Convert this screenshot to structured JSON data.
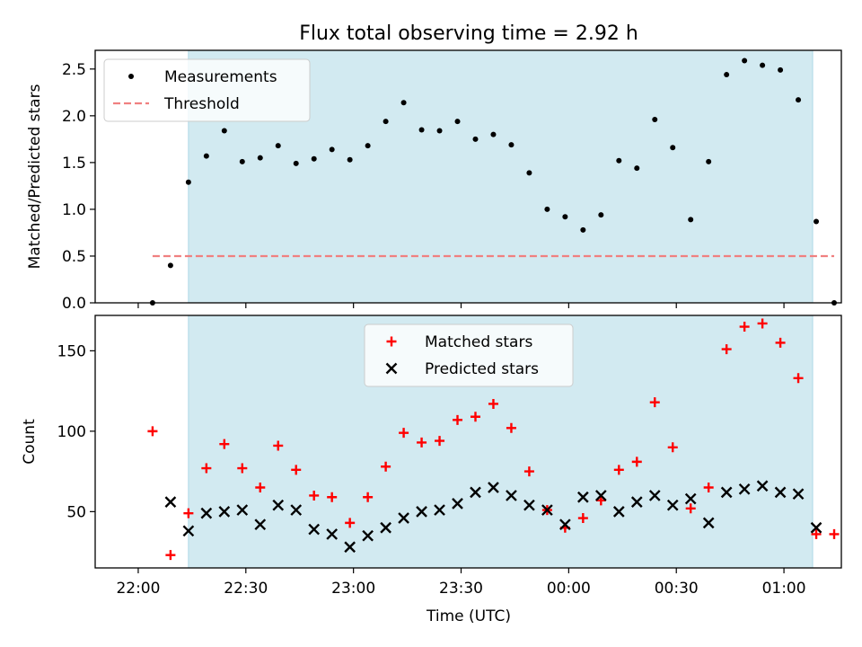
{
  "title": "Flux total observing time = 2.92 h",
  "x_axis": {
    "label": "Time (UTC)",
    "ticks": [
      "22:00",
      "22:30",
      "23:00",
      "23:30",
      "00:00",
      "00:30",
      "01:00"
    ]
  },
  "shaded_interval": {
    "start": "22:14",
    "end": "01:08",
    "color": "#add8e6"
  },
  "chart_data": [
    {
      "type": "scatter",
      "ylabel": "Matched/Predicted stars",
      "ylim": [
        0,
        2.7
      ],
      "yticks": [
        "0.0",
        "0.5",
        "1.0",
        "1.5",
        "2.0",
        "2.5"
      ],
      "legend_position": "top-left",
      "threshold": {
        "name": "Threshold",
        "value": 0.5,
        "x_start": "22:04",
        "x_end": "01:14",
        "color": "#f08080"
      },
      "series": [
        {
          "name": "Measurements",
          "color": "#000000",
          "marker": "dot",
          "points": [
            [
              "22:04",
              0.0
            ],
            [
              "22:09",
              0.4
            ],
            [
              "22:14",
              1.29
            ],
            [
              "22:19",
              1.57
            ],
            [
              "22:24",
              1.84
            ],
            [
              "22:29",
              1.51
            ],
            [
              "22:34",
              1.55
            ],
            [
              "22:39",
              1.68
            ],
            [
              "22:44",
              1.49
            ],
            [
              "22:49",
              1.54
            ],
            [
              "22:54",
              1.64
            ],
            [
              "22:59",
              1.53
            ],
            [
              "23:04",
              1.68
            ],
            [
              "23:09",
              1.94
            ],
            [
              "23:14",
              2.14
            ],
            [
              "23:19",
              1.85
            ],
            [
              "23:24",
              1.84
            ],
            [
              "23:29",
              1.94
            ],
            [
              "23:34",
              1.75
            ],
            [
              "23:39",
              1.8
            ],
            [
              "23:44",
              1.69
            ],
            [
              "23:49",
              1.39
            ],
            [
              "23:54",
              1.0
            ],
            [
              "23:59",
              0.92
            ],
            [
              "00:04",
              0.78
            ],
            [
              "00:09",
              0.94
            ],
            [
              "00:14",
              1.52
            ],
            [
              "00:19",
              1.44
            ],
            [
              "00:24",
              1.96
            ],
            [
              "00:29",
              1.66
            ],
            [
              "00:34",
              0.89
            ],
            [
              "00:39",
              1.51
            ],
            [
              "00:44",
              2.44
            ],
            [
              "00:49",
              2.59
            ],
            [
              "00:54",
              2.54
            ],
            [
              "00:59",
              2.49
            ],
            [
              "01:04",
              2.17
            ],
            [
              "01:09",
              0.87
            ],
            [
              "01:14",
              0.0
            ]
          ]
        }
      ]
    },
    {
      "type": "scatter",
      "ylabel": "Count",
      "ylim": [
        15,
        172
      ],
      "yticks": [
        "50",
        "100",
        "150"
      ],
      "legend_position": "top-center",
      "series": [
        {
          "name": "Matched stars",
          "color": "#ff0000",
          "marker": "plus",
          "points": [
            [
              "22:04",
              100
            ],
            [
              "22:09",
              23
            ],
            [
              "22:14",
              49
            ],
            [
              "22:19",
              77
            ],
            [
              "22:24",
              92
            ],
            [
              "22:29",
              77
            ],
            [
              "22:34",
              65
            ],
            [
              "22:39",
              91
            ],
            [
              "22:44",
              76
            ],
            [
              "22:49",
              60
            ],
            [
              "22:54",
              59
            ],
            [
              "22:59",
              43
            ],
            [
              "23:04",
              59
            ],
            [
              "23:09",
              78
            ],
            [
              "23:14",
              99
            ],
            [
              "23:19",
              93
            ],
            [
              "23:24",
              94
            ],
            [
              "23:29",
              107
            ],
            [
              "23:34",
              109
            ],
            [
              "23:39",
              117
            ],
            [
              "23:44",
              102
            ],
            [
              "23:49",
              75
            ],
            [
              "23:54",
              51
            ],
            [
              "23:59",
              40
            ],
            [
              "00:04",
              46
            ],
            [
              "00:09",
              57
            ],
            [
              "00:14",
              76
            ],
            [
              "00:19",
              81
            ],
            [
              "00:24",
              118
            ],
            [
              "00:29",
              90
            ],
            [
              "00:34",
              52
            ],
            [
              "00:39",
              65
            ],
            [
              "00:44",
              151
            ],
            [
              "00:49",
              165
            ],
            [
              "00:54",
              167
            ],
            [
              "00:59",
              155
            ],
            [
              "01:04",
              133
            ],
            [
              "01:09",
              36
            ],
            [
              "01:14",
              36
            ]
          ]
        },
        {
          "name": "Predicted stars",
          "color": "#000000",
          "marker": "x",
          "points": [
            [
              "22:09",
              56
            ],
            [
              "22:14",
              38
            ],
            [
              "22:19",
              49
            ],
            [
              "22:24",
              50
            ],
            [
              "22:29",
              51
            ],
            [
              "22:34",
              42
            ],
            [
              "22:39",
              54
            ],
            [
              "22:44",
              51
            ],
            [
              "22:49",
              39
            ],
            [
              "22:54",
              36
            ],
            [
              "22:59",
              28
            ],
            [
              "23:04",
              35
            ],
            [
              "23:09",
              40
            ],
            [
              "23:14",
              46
            ],
            [
              "23:19",
              50
            ],
            [
              "23:24",
              51
            ],
            [
              "23:29",
              55
            ],
            [
              "23:34",
              62
            ],
            [
              "23:39",
              65
            ],
            [
              "23:44",
              60
            ],
            [
              "23:49",
              54
            ],
            [
              "23:54",
              51
            ],
            [
              "23:59",
              42
            ],
            [
              "00:04",
              59
            ],
            [
              "00:09",
              60
            ],
            [
              "00:14",
              50
            ],
            [
              "00:19",
              56
            ],
            [
              "00:24",
              60
            ],
            [
              "00:29",
              54
            ],
            [
              "00:34",
              58
            ],
            [
              "00:39",
              43
            ],
            [
              "00:44",
              62
            ],
            [
              "00:49",
              64
            ],
            [
              "00:54",
              66
            ],
            [
              "00:59",
              62
            ],
            [
              "01:04",
              61
            ],
            [
              "01:09",
              40
            ]
          ]
        }
      ]
    }
  ]
}
